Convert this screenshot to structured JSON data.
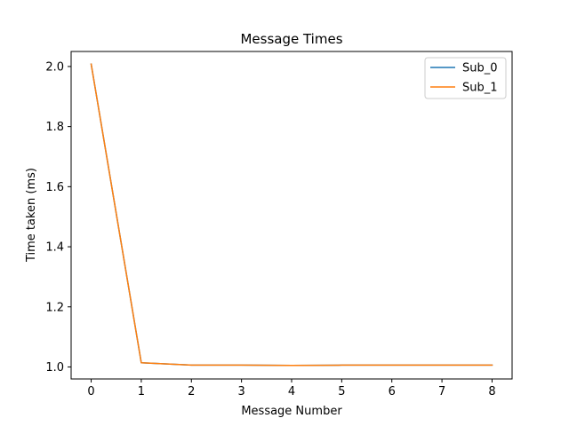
{
  "chart_data": {
    "type": "line",
    "title": "Message Times",
    "xlabel": "Message Number",
    "ylabel": "Time taken (ms)",
    "x": [
      0,
      1,
      2,
      3,
      4,
      5,
      6,
      7,
      8
    ],
    "xlim": [
      -0.4,
      8.4
    ],
    "ylim": [
      0.96,
      2.05
    ],
    "xticks": [
      0,
      1,
      2,
      3,
      4,
      5,
      6,
      7,
      8
    ],
    "xtick_labels": [
      "0",
      "1",
      "2",
      "3",
      "4",
      "5",
      "6",
      "7",
      "8"
    ],
    "yticks": [
      1.0,
      1.2,
      1.4,
      1.6,
      1.8,
      2.0
    ],
    "ytick_labels": [
      "1.0",
      "1.2",
      "1.4",
      "1.6",
      "1.8",
      "2.0"
    ],
    "grid": false,
    "legend_position": "top-right",
    "series": [
      {
        "name": "Sub_0",
        "color": "#1f77b4",
        "values": [
          2.008,
          1.014,
          1.006,
          1.006,
          1.005,
          1.006,
          1.006,
          1.006,
          1.006
        ]
      },
      {
        "name": "Sub_1",
        "color": "#ff7f0e",
        "values": [
          2.008,
          1.014,
          1.006,
          1.006,
          1.005,
          1.006,
          1.006,
          1.006,
          1.006
        ]
      }
    ]
  }
}
